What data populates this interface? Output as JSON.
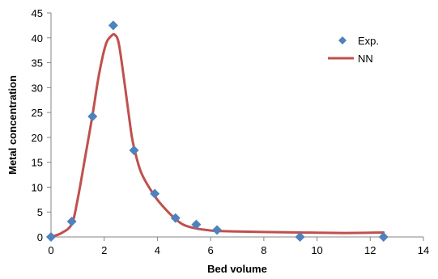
{
  "chart_data": {
    "type": "scatter",
    "xlabel": "Bed volume",
    "ylabel": "Metal concentration",
    "xlim": [
      0,
      14
    ],
    "ylim": [
      0,
      45
    ],
    "xticks": [
      "0",
      "2",
      "4",
      "6",
      "8",
      "10",
      "12",
      "14"
    ],
    "yticks": [
      "0",
      "5",
      "10",
      "15",
      "20",
      "25",
      "30",
      "35",
      "40",
      "45"
    ],
    "grid": false,
    "legend_position": "top-right",
    "series": [
      {
        "name": "Exp.",
        "kind": "scatter",
        "marker": "diamond",
        "color": "#4f81bd",
        "x": [
          0,
          0.78,
          1.56,
          2.34,
          3.12,
          3.9,
          4.68,
          5.46,
          6.24,
          9.36,
          12.5
        ],
        "y": [
          0,
          3.1,
          24.2,
          42.5,
          17.4,
          8.7,
          3.8,
          2.5,
          1.4,
          0,
          0
        ]
      },
      {
        "name": "NN",
        "kind": "line",
        "color": "#c0504d",
        "x": [
          0,
          0.4,
          0.78,
          1.0,
          1.3,
          1.56,
          1.8,
          2.05,
          2.25,
          2.4,
          2.55,
          2.75,
          3.0,
          3.12,
          3.4,
          3.9,
          4.3,
          4.68,
          5.0,
          5.46,
          6.0,
          6.24,
          7.0,
          8.0,
          9.36,
          11.0,
          12.5
        ],
        "y": [
          0,
          0.8,
          2.6,
          7.5,
          16.5,
          24.5,
          32.5,
          38.5,
          40.3,
          40.6,
          38.8,
          31.5,
          21.5,
          18.0,
          12.8,
          8.2,
          5.6,
          3.6,
          2.4,
          1.7,
          1.3,
          1.2,
          1.1,
          1.0,
          0.9,
          0.8,
          0.9
        ]
      }
    ]
  }
}
